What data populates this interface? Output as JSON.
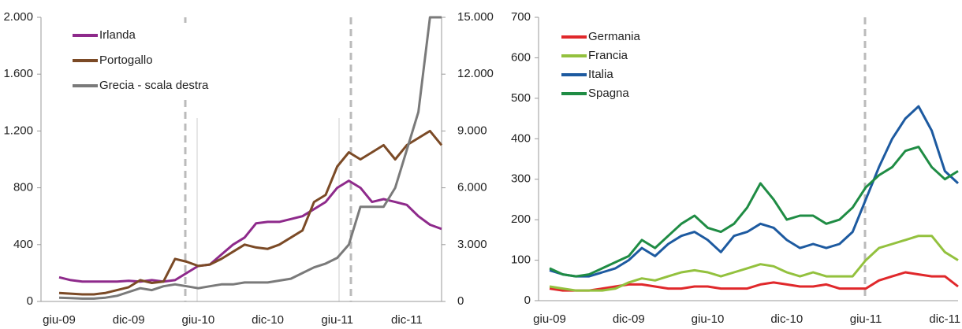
{
  "chart_data": [
    {
      "type": "line",
      "categories": [
        "giu-09",
        null,
        null,
        null,
        null,
        null,
        "dic-09",
        null,
        null,
        null,
        null,
        null,
        "giu-10",
        null,
        null,
        null,
        null,
        null,
        "dic-10",
        null,
        null,
        null,
        null,
        null,
        "giu-11",
        null,
        null,
        null,
        null,
        null,
        "dic-11",
        null,
        null,
        null
      ],
      "ylim": [
        0,
        2000
      ],
      "yticks": [
        0,
        400,
        800,
        {
          "value": 1200,
          "label": "1.200"
        },
        {
          "value": 1600,
          "label": "1.600"
        },
        {
          "value": 2000,
          "label": "2.000"
        }
      ],
      "y2lim": [
        0,
        15000
      ],
      "y2ticks": [
        0,
        {
          "value": 3000,
          "label": "3.000"
        },
        {
          "value": 6000,
          "label": "6.000"
        },
        {
          "value": 9000,
          "label": "9.000"
        },
        {
          "value": 12000,
          "label": "12.000"
        },
        {
          "value": 15000,
          "label": "15.000"
        }
      ],
      "legend": "upper left",
      "series": [
        {
          "name": "Irlanda",
          "color": "#8e2a8b",
          "values": [
            170,
            150,
            140,
            140,
            140,
            140,
            145,
            140,
            150,
            140,
            150,
            200,
            250,
            260,
            330,
            400,
            450,
            550,
            560,
            560,
            580,
            600,
            650,
            700,
            800,
            850,
            800,
            700,
            720,
            700,
            680,
            600,
            540,
            510
          ]
        },
        {
          "name": "Portogallo",
          "color": "#7b4a26",
          "values": [
            60,
            55,
            50,
            50,
            60,
            80,
            100,
            150,
            130,
            140,
            300,
            280,
            250,
            260,
            300,
            350,
            400,
            380,
            370,
            400,
            450,
            500,
            700,
            750,
            950,
            1050,
            1000,
            1050,
            1100,
            1000,
            1100,
            1150,
            1200,
            1100
          ]
        },
        {
          "name": "Grecia - scala destra",
          "color": "#7a7a7a",
          "axis": "y2",
          "values": [
            200,
            180,
            150,
            150,
            200,
            300,
            500,
            700,
            600,
            800,
            900,
            800,
            700,
            800,
            900,
            900,
            1000,
            1000,
            1000,
            1100,
            1200,
            1500,
            1800,
            2000,
            2300,
            3000,
            5000,
            5000,
            5000,
            6000,
            8000,
            10000,
            15000,
            15000
          ]
        }
      ]
    },
    {
      "type": "line",
      "categories": [
        "giu-09",
        null,
        null,
        null,
        null,
        null,
        "dic-09",
        null,
        null,
        null,
        null,
        null,
        "giu-10",
        null,
        null,
        null,
        null,
        null,
        "dic-10",
        null,
        null,
        null,
        null,
        null,
        "giu-11",
        null,
        null,
        null,
        null,
        null,
        "dic-11",
        null
      ],
      "ylim": [
        0,
        700
      ],
      "yticks": [
        0,
        100,
        200,
        300,
        400,
        500,
        600,
        700
      ],
      "legend": "upper left",
      "series": [
        {
          "name": "Germania",
          "color": "#e0282b",
          "values": [
            30,
            25,
            25,
            25,
            30,
            35,
            40,
            40,
            35,
            30,
            30,
            35,
            35,
            30,
            30,
            30,
            40,
            45,
            40,
            35,
            35,
            40,
            30,
            30,
            30,
            50,
            60,
            70,
            65,
            60,
            60,
            35
          ]
        },
        {
          "name": "Francia",
          "color": "#93c13e",
          "values": [
            35,
            30,
            25,
            25,
            25,
            30,
            45,
            55,
            50,
            60,
            70,
            75,
            70,
            60,
            70,
            80,
            90,
            85,
            70,
            60,
            70,
            60,
            60,
            60,
            100,
            130,
            140,
            150,
            160,
            160,
            120,
            100
          ]
        },
        {
          "name": "Italia",
          "color": "#1d5aa0",
          "values": [
            75,
            65,
            60,
            60,
            70,
            80,
            100,
            130,
            110,
            140,
            160,
            170,
            150,
            120,
            160,
            170,
            190,
            180,
            150,
            130,
            140,
            130,
            140,
            170,
            250,
            330,
            400,
            450,
            480,
            420,
            320,
            290
          ]
        },
        {
          "name": "Spagna",
          "color": "#1f8c44",
          "values": [
            80,
            65,
            60,
            65,
            80,
            95,
            110,
            150,
            130,
            160,
            190,
            210,
            180,
            170,
            190,
            230,
            290,
            250,
            200,
            210,
            210,
            190,
            200,
            230,
            280,
            310,
            330,
            370,
            380,
            330,
            300,
            320
          ]
        }
      ]
    }
  ]
}
